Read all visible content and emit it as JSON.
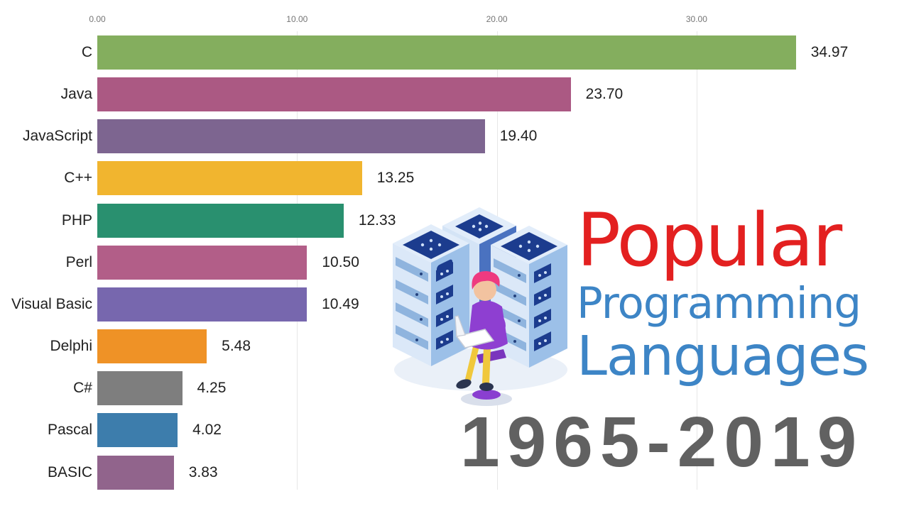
{
  "title_block": {
    "line1": "Popular",
    "line2": "Programming",
    "line3": "Languages",
    "line1_color": "#e32020",
    "line23_color": "#3d85c6",
    "period": "1965-2019",
    "period_color": "#616161"
  },
  "illustration": {
    "description": "isometric server racks with person on stool using laptop"
  },
  "chart_data": {
    "type": "bar",
    "orientation": "horizontal",
    "title": "Popular Programming Languages",
    "subtitle": "1965-2019",
    "grid": true,
    "legend": false,
    "xlim": [
      0,
      36
    ],
    "axis": {
      "ticks": [
        {
          "label": "0.00",
          "value": 0
        },
        {
          "label": "10.00",
          "value": 10
        },
        {
          "label": "20.00",
          "value": 20
        },
        {
          "label": "30.00",
          "value": 30
        }
      ]
    },
    "categories": [
      "C",
      "Java",
      "JavaScript",
      "C++",
      "PHP",
      "Perl",
      "Visual Basic",
      "Delphi",
      "C#",
      "Pascal",
      "BASIC"
    ],
    "values": [
      34.97,
      23.7,
      19.4,
      13.25,
      12.33,
      10.5,
      10.49,
      5.48,
      4.25,
      4.02,
      3.83
    ],
    "value_labels": [
      "34.97",
      "23.70",
      "19.40",
      "13.25",
      "12.33",
      "10.50",
      "10.49",
      "5.48",
      "4.25",
      "4.02",
      "3.83"
    ],
    "bar_colors": [
      "#84ae5e",
      "#ab5983",
      "#7d6590",
      "#f1b52f",
      "#29906f",
      "#b25e88",
      "#7767ae",
      "#ef9226",
      "#7e7e7e",
      "#3d7dac",
      "#91648c"
    ],
    "text_color": "#1f1f1f",
    "tick_color": "#757575"
  }
}
